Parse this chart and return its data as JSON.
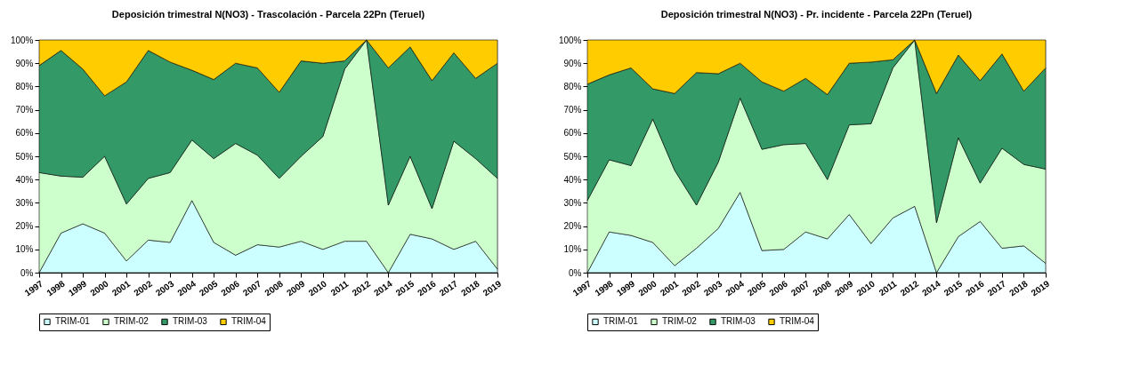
{
  "chart_data": [
    {
      "type": "area",
      "stacked": true,
      "title": "Deposición trimestral N(NO3) - Trascolación - Parcela 22Pn (Teruel)",
      "categories": [
        "1997",
        "1998",
        "1999",
        "2000",
        "2001",
        "2002",
        "2003",
        "2004",
        "2005",
        "2006",
        "2007",
        "2008",
        "2009",
        "2010",
        "2011",
        "2012",
        "2014",
        "2015",
        "2016",
        "2017",
        "2018",
        "2019"
      ],
      "series": [
        {
          "name": "TRIM-01",
          "color": "#ccffff",
          "values": [
            0,
            17,
            21,
            17,
            5,
            14,
            13,
            31,
            13,
            7.5,
            12,
            11,
            13.5,
            10,
            13.5,
            13.5,
            0,
            16.5,
            14.5,
            10,
            13.5,
            1.5
          ]
        },
        {
          "name": "TRIM-02",
          "color": "#ccffcc",
          "values": [
            43,
            24.5,
            20,
            33,
            24.5,
            26.5,
            30,
            26,
            36,
            48,
            38.5,
            29.5,
            36.5,
            48.5,
            74,
            86.5,
            29,
            33.5,
            13,
            46.5,
            35.5,
            39
          ]
        },
        {
          "name": "TRIM-03",
          "color": "#339966",
          "values": [
            46,
            54,
            46.5,
            26,
            52.5,
            55,
            47.5,
            30,
            34,
            34.5,
            37.5,
            37,
            41,
            31.5,
            3.5,
            0,
            59,
            47,
            55,
            38,
            34.5,
            49.5
          ]
        },
        {
          "name": "TRIM-04",
          "color": "#ffcc00",
          "values": [
            11,
            4.5,
            12.5,
            24,
            18,
            4.5,
            9.5,
            13,
            17,
            10,
            12,
            22.5,
            9,
            10,
            9,
            0,
            12,
            3,
            17.5,
            5.5,
            16.5,
            10
          ]
        }
      ],
      "ylim": [
        0,
        100
      ],
      "yticks": [
        {
          "value": 0,
          "label": "0%"
        },
        {
          "value": 10,
          "label": "10%"
        },
        {
          "value": 20,
          "label": "20%"
        },
        {
          "value": 30,
          "label": "30%"
        },
        {
          "value": 40,
          "label": "40%"
        },
        {
          "value": 50,
          "label": "50%"
        },
        {
          "value": 60,
          "label": "60%"
        },
        {
          "value": 70,
          "label": "70%"
        },
        {
          "value": 80,
          "label": "80%"
        },
        {
          "value": 90,
          "label": "90%"
        },
        {
          "value": 100,
          "label": "100%"
        }
      ],
      "legend": "bottom"
    },
    {
      "type": "area",
      "stacked": true,
      "title": "Deposición trimestral N(NO3) - Pr. incidente - Parcela 22Pn (Teruel)",
      "categories": [
        "1997",
        "1998",
        "1999",
        "2000",
        "2001",
        "2002",
        "2003",
        "2004",
        "2005",
        "2006",
        "2007",
        "2008",
        "2009",
        "2010",
        "2011",
        "2012",
        "2014",
        "2015",
        "2016",
        "2017",
        "2018",
        "2019"
      ],
      "series": [
        {
          "name": "TRIM-01",
          "color": "#ccffff",
          "values": [
            0,
            17.5,
            16,
            13,
            3,
            10.5,
            19,
            34.5,
            9.5,
            10,
            17.5,
            14.5,
            25,
            12.5,
            23.5,
            28.5,
            0,
            15.5,
            22,
            10.5,
            11.5,
            4
          ]
        },
        {
          "name": "TRIM-02",
          "color": "#ccffcc",
          "values": [
            31,
            31,
            30,
            53,
            41,
            18.5,
            28.5,
            40.5,
            43.5,
            45,
            38,
            25.5,
            38.5,
            51.5,
            64.5,
            71.5,
            21.5,
            42.5,
            16.5,
            43,
            35,
            40.5
          ]
        },
        {
          "name": "TRIM-03",
          "color": "#339966",
          "values": [
            50,
            36.5,
            42,
            13,
            33,
            57,
            38,
            15,
            29,
            23,
            28,
            36.5,
            26.5,
            26.5,
            3.5,
            0,
            55.5,
            35.5,
            44,
            40.5,
            31.5,
            43.5
          ]
        },
        {
          "name": "TRIM-04",
          "color": "#ffcc00",
          "values": [
            19,
            15,
            12,
            21,
            23,
            14,
            14.5,
            10,
            18,
            22,
            16.5,
            23.5,
            10,
            9.5,
            8.5,
            0,
            23,
            6.5,
            17.5,
            6,
            22,
            12
          ]
        }
      ],
      "ylim": [
        0,
        100
      ],
      "yticks": [
        {
          "value": 0,
          "label": "0%"
        },
        {
          "value": 10,
          "label": "10%"
        },
        {
          "value": 20,
          "label": "20%"
        },
        {
          "value": 30,
          "label": "30%"
        },
        {
          "value": 40,
          "label": "40%"
        },
        {
          "value": 50,
          "label": "50%"
        },
        {
          "value": 60,
          "label": "60%"
        },
        {
          "value": 70,
          "label": "70%"
        },
        {
          "value": 80,
          "label": "80%"
        },
        {
          "value": 90,
          "label": "90%"
        },
        {
          "value": 100,
          "label": "100%"
        }
      ],
      "legend": "bottom"
    }
  ]
}
